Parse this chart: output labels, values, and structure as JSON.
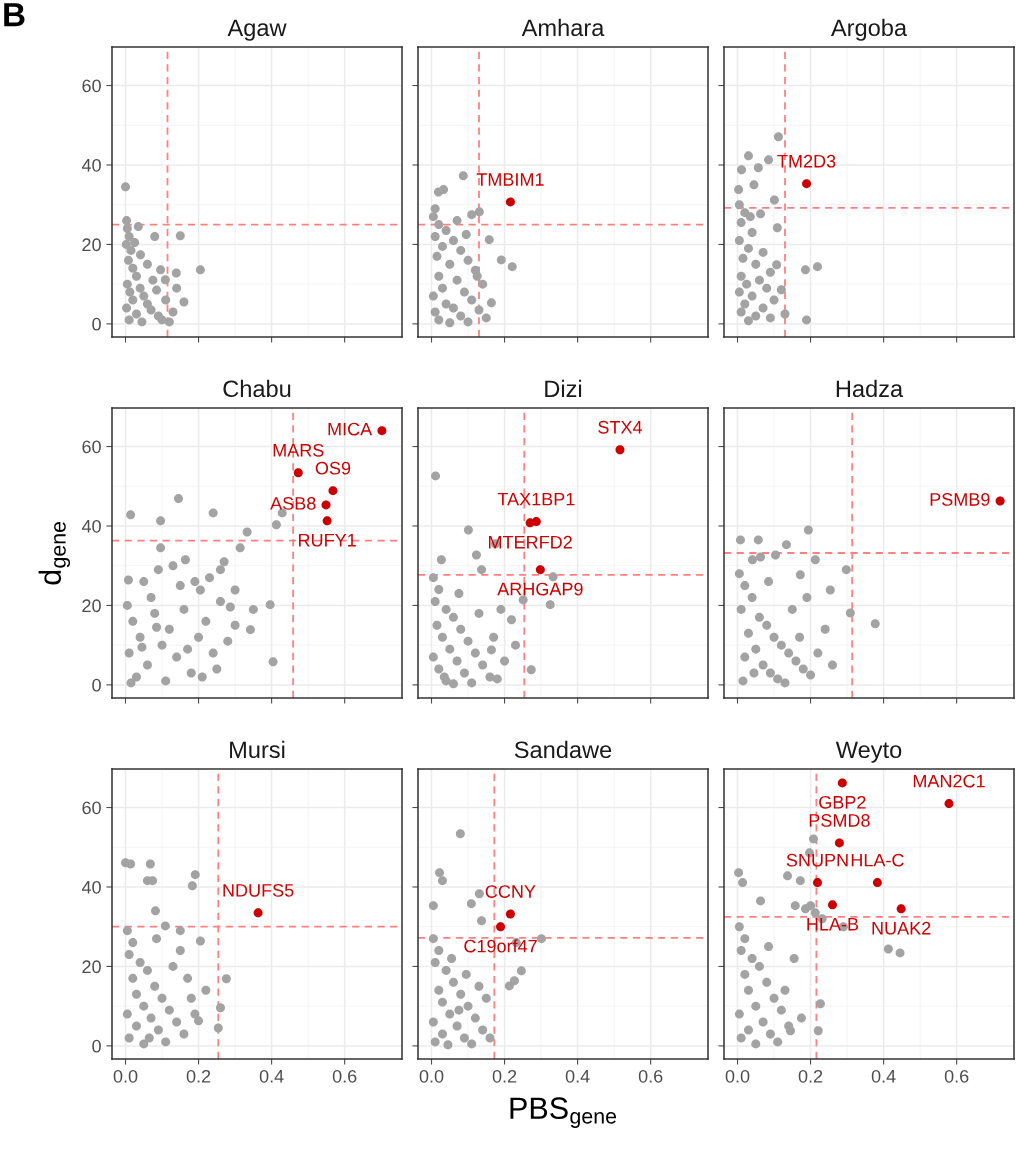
{
  "chart_data": [
    {
      "type": "scatter",
      "title": "Agaw",
      "annotations": [
        "B"
      ],
      "xlim": [
        -0.037,
        0.757
      ],
      "ylim": [
        -3.3,
        69.7
      ],
      "xticks": [
        {
          "value": 0,
          "label": null
        },
        {
          "value": 0.2,
          "label": null
        },
        {
          "value": 0.4,
          "label": null
        },
        {
          "value": 0.6,
          "label": null
        }
      ],
      "yticks": [
        0,
        20,
        40,
        60
      ],
      "grid": true,
      "tick_labels": "y",
      "marker": "circle",
      "ref_lines": [
        {
          "axis": "x",
          "value": 0.115,
          "color": "#ff8080",
          "line_style": "dashed"
        },
        {
          "axis": "y",
          "value": 25,
          "color": "#ff8080",
          "line_style": "dashed"
        }
      ],
      "series": [
        {
          "color": "#a3a3a3",
          "x": [
            0.0,
            0.003,
            0.005,
            0.01,
            0.002,
            0.015,
            0.008,
            0.02,
            0.03,
            0.005,
            0.04,
            0.012,
            0.05,
            0.02,
            0.06,
            0.003,
            0.07,
            0.03,
            0.09,
            0.01,
            0.045,
            0.1,
            0.12,
            0.08,
            0.15,
            0.205,
            0.139,
            0.096,
            0.109,
            0.041,
            0.06,
            0.075,
            0.11,
            0.13,
            0.085,
            0.025,
            0.14,
            0.16,
            0.035
          ],
          "values": [
            34.5,
            26.0,
            24.0,
            22.0,
            20.0,
            18.5,
            16.0,
            14.0,
            12.0,
            10.0,
            9.0,
            8.0,
            7.0,
            6.0,
            5.0,
            4.0,
            3.5,
            2.5,
            2.0,
            1.0,
            0.5,
            1.0,
            0.5,
            22.0,
            22.2,
            13.6,
            12.8,
            13.6,
            11.1,
            17.4,
            15.0,
            11.0,
            6.0,
            3.0,
            8.5,
            20.5,
            9.0,
            5.5,
            24.5
          ]
        }
      ]
    },
    {
      "type": "scatter",
      "title": "Amhara",
      "xlim": [
        -0.037,
        0.757
      ],
      "ylim": [
        -3.3,
        69.7
      ],
      "xticks": [
        {
          "value": 0,
          "label": null
        },
        {
          "value": 0.2,
          "label": null
        },
        {
          "value": 0.4,
          "label": null
        },
        {
          "value": 0.6,
          "label": null
        }
      ],
      "yticks": [
        0,
        20,
        40,
        60
      ],
      "grid": true,
      "tick_labels": false,
      "marker": "circle",
      "ref_lines": [
        {
          "axis": "x",
          "value": 0.13,
          "color": "#ff8080",
          "line_style": "dashed"
        },
        {
          "axis": "y",
          "value": 25,
          "color": "#ff8080",
          "line_style": "dashed"
        }
      ],
      "annotations": [
        {
          "text": "TMBIM1",
          "x": 0.216,
          "y": 30.7
        }
      ],
      "series": [
        {
          "color": "#a3a3a3",
          "x": [
            0.019,
            0.033,
            0.087,
            0.131,
            0.11,
            0.01,
            0.005,
            0.02,
            0.04,
            0.01,
            0.06,
            0.158,
            0.03,
            0.08,
            0.015,
            0.1,
            0.191,
            0.221,
            0.05,
            0.12,
            0.02,
            0.07,
            0.14,
            0.03,
            0.09,
            0.005,
            0.11,
            0.164,
            0.04,
            0.06,
            0.13,
            0.01,
            0.08,
            0.15,
            0.02,
            0.1,
            0.05,
            0.125,
            0.095,
            0.07
          ],
          "values": [
            33.2,
            33.8,
            37.3,
            28.2,
            27.5,
            29.0,
            27.0,
            25.0,
            23.5,
            22.0,
            21.0,
            21.2,
            19.5,
            18.5,
            17.0,
            16.0,
            16.1,
            14.4,
            15.0,
            13.5,
            12.0,
            11.0,
            10.0,
            9.0,
            8.0,
            7.0,
            6.0,
            5.3,
            5.0,
            4.0,
            3.5,
            3.0,
            2.0,
            1.5,
            1.0,
            0.5,
            0.3,
            12.0,
            22.5,
            26.0
          ]
        },
        {
          "color": "#cc0000",
          "x": [
            0.216
          ],
          "values": [
            30.7
          ]
        }
      ]
    },
    {
      "type": "scatter",
      "title": "Argoba",
      "xlim": [
        -0.037,
        0.757
      ],
      "ylim": [
        -3.3,
        69.7
      ],
      "xticks": [
        {
          "value": 0,
          "label": null
        },
        {
          "value": 0.2,
          "label": null
        },
        {
          "value": 0.4,
          "label": null
        },
        {
          "value": 0.6,
          "label": null
        }
      ],
      "yticks": [
        0,
        20,
        40,
        60
      ],
      "grid": true,
      "tick_labels": false,
      "marker": "circle",
      "ref_lines": [
        {
          "axis": "x",
          "value": 0.13,
          "color": "#ff8080",
          "line_style": "dashed"
        },
        {
          "axis": "y",
          "value": 29.2,
          "color": "#ff8080",
          "line_style": "dashed"
        }
      ],
      "annotations": [
        {
          "text": "TM2D3",
          "x": 0.189,
          "y": 35.3
        }
      ],
      "series": [
        {
          "color": "#a3a3a3",
          "x": [
            0.112,
            0.03,
            0.085,
            0.011,
            0.057,
            0.003,
            0.101,
            0.063,
            0.109,
            0.186,
            0.219,
            0.107,
            0.12,
            0.189,
            0.005,
            0.02,
            0.01,
            0.04,
            0.005,
            0.03,
            0.07,
            0.015,
            0.05,
            0.09,
            0.01,
            0.06,
            0.025,
            0.08,
            0.005,
            0.04,
            0.1,
            0.02,
            0.07,
            0.01,
            0.05,
            0.09,
            0.03,
            0.13,
            0.045,
            0.035
          ],
          "values": [
            47.1,
            42.3,
            41.3,
            38.8,
            39.3,
            33.8,
            31.2,
            27.7,
            24.2,
            13.6,
            14.4,
            14.9,
            8.6,
            1.0,
            30.0,
            28.0,
            25.5,
            23.0,
            21.0,
            19.0,
            18.0,
            16.5,
            15.0,
            13.0,
            12.0,
            11.0,
            10.0,
            9.0,
            8.0,
            7.0,
            6.0,
            5.0,
            4.0,
            3.0,
            2.0,
            1.5,
            0.8,
            2.5,
            35.0,
            27.0
          ]
        },
        {
          "color": "#cc0000",
          "x": [
            0.189
          ],
          "values": [
            35.3
          ]
        }
      ]
    },
    {
      "type": "scatter",
      "title": "Chabu",
      "ylabel": "d$_{gene}$",
      "xlim": [
        -0.037,
        0.757
      ],
      "ylim": [
        -3.3,
        69.7
      ],
      "xticks": [
        {
          "value": 0,
          "label": null
        },
        {
          "value": 0.2,
          "label": null
        },
        {
          "value": 0.4,
          "label": null
        },
        {
          "value": 0.6,
          "label": null
        }
      ],
      "yticks": [
        0,
        20,
        40,
        60
      ],
      "grid": true,
      "tick_labels": "y",
      "marker": "circle",
      "ref_lines": [
        {
          "axis": "x",
          "value": 0.459,
          "color": "#ff8080",
          "line_style": "dashed"
        },
        {
          "axis": "y",
          "value": 36.3,
          "color": "#ff8080",
          "line_style": "dashed"
        }
      ],
      "annotations": [
        {
          "text": "MICA",
          "x": 0.702,
          "y": 64.0
        },
        {
          "text": "MARS",
          "x": 0.473,
          "y": 53.4
        },
        {
          "text": "OS9",
          "x": 0.568,
          "y": 48.9
        },
        {
          "text": "ASB8",
          "x": 0.549,
          "y": 45.3
        },
        {
          "text": "RUFY1",
          "x": 0.552,
          "y": 41.3
        }
      ],
      "series": [
        {
          "color": "#a3a3a3",
          "x": [
            0.145,
            0.014,
            0.096,
            0.24,
            0.333,
            0.429,
            0.413,
            0.396,
            0.404,
            0.287,
            0.342,
            0.3,
            0.205,
            0.26,
            0.164,
            0.314,
            0.096,
            0.008,
            0.005,
            0.02,
            0.04,
            0.01,
            0.06,
            0.03,
            0.08,
            0.1,
            0.12,
            0.07,
            0.14,
            0.16,
            0.18,
            0.2,
            0.22,
            0.24,
            0.26,
            0.28,
            0.15,
            0.11,
            0.05,
            0.09,
            0.13,
            0.19,
            0.25,
            0.3,
            0.17,
            0.21,
            0.35,
            0.015,
            0.045,
            0.085,
            0.23,
            0.27
          ],
          "values": [
            46.9,
            42.8,
            41.3,
            43.3,
            38.5,
            43.3,
            40.3,
            20.2,
            5.8,
            19.6,
            13.9,
            23.9,
            23.9,
            29.0,
            31.5,
            34.5,
            34.5,
            26.4,
            20,
            16,
            12,
            8,
            5,
            2,
            18,
            10,
            14,
            22,
            7,
            19,
            3,
            12,
            16,
            8,
            21,
            11,
            25,
            1,
            26,
            29,
            30,
            26,
            4,
            15,
            9,
            2,
            19,
            0.5,
            9.5,
            14.5,
            27,
            31
          ]
        },
        {
          "color": "#cc0000",
          "x": [
            0.702,
            0.473,
            0.568,
            0.549,
            0.552
          ],
          "values": [
            64.0,
            53.4,
            48.9,
            45.3,
            41.3
          ]
        }
      ]
    },
    {
      "type": "scatter",
      "title": "Dizi",
      "xlim": [
        -0.037,
        0.757
      ],
      "ylim": [
        -3.3,
        69.7
      ],
      "xticks": [
        {
          "value": 0,
          "label": null
        },
        {
          "value": 0.2,
          "label": null
        },
        {
          "value": 0.4,
          "label": null
        },
        {
          "value": 0.6,
          "label": null
        }
      ],
      "yticks": [
        0,
        20,
        40,
        60
      ],
      "grid": true,
      "tick_labels": false,
      "marker": "circle",
      "ref_lines": [
        {
          "axis": "x",
          "value": 0.254,
          "color": "#ff8080",
          "line_style": "dashed"
        },
        {
          "axis": "y",
          "value": 27.7,
          "color": "#ff8080",
          "line_style": "dashed"
        }
      ],
      "annotations": [
        {
          "text": "STX4",
          "x": 0.516,
          "y": 59.2
        },
        {
          "text": "TAX1BP1",
          "x": 0.287,
          "y": 41.1
        },
        {
          "text": "MTERFD2",
          "x": 0.27,
          "y": 40.8
        },
        {
          "text": "ARHGAP9",
          "x": 0.298,
          "y": 29.0
        }
      ],
      "series": [
        {
          "color": "#a3a3a3",
          "x": [
            0.011,
            0.101,
            0.175,
            0.027,
            0.123,
            0.137,
            0.251,
            0.325,
            0.333,
            0.219,
            0.164,
            0.273,
            0.005,
            0.02,
            0.01,
            0.04,
            0.06,
            0.015,
            0.08,
            0.03,
            0.1,
            0.05,
            0.12,
            0.005,
            0.07,
            0.14,
            0.02,
            0.09,
            0.16,
            0.04,
            0.11,
            0.18,
            0.2,
            0.13,
            0.17,
            0.075,
            0.035,
            0.06,
            0.19,
            0.23
          ],
          "values": [
            52.6,
            39.0,
            35.5,
            31.5,
            32.7,
            29.0,
            21.4,
            20.2,
            27.2,
            16.4,
            8.8,
            3.8,
            27,
            24,
            21,
            19,
            17,
            15,
            14,
            12,
            11,
            9,
            8,
            7,
            6,
            5,
            4,
            3,
            2,
            1,
            0.5,
            1.5,
            6,
            18,
            12,
            23,
            2,
            0.3,
            19,
            10
          ]
        },
        {
          "color": "#cc0000",
          "x": [
            0.516,
            0.287,
            0.27,
            0.298
          ],
          "values": [
            59.2,
            41.1,
            40.8,
            29.0
          ]
        }
      ]
    },
    {
      "type": "scatter",
      "title": "Hadza",
      "xlim": [
        -0.037,
        0.757
      ],
      "ylim": [
        -3.3,
        69.7
      ],
      "xticks": [
        {
          "value": 0,
          "label": null
        },
        {
          "value": 0.2,
          "label": null
        },
        {
          "value": 0.4,
          "label": null
        },
        {
          "value": 0.6,
          "label": null
        }
      ],
      "yticks": [
        0,
        20,
        40,
        60
      ],
      "grid": true,
      "tick_labels": false,
      "marker": "circle",
      "ref_lines": [
        {
          "axis": "x",
          "value": 0.314,
          "color": "#ff8080",
          "line_style": "dashed"
        },
        {
          "axis": "y",
          "value": 33.2,
          "color": "#ff8080",
          "line_style": "dashed"
        }
      ],
      "annotations": [
        {
          "text": "PSMB9",
          "x": 0.719,
          "y": 46.3
        }
      ],
      "series": [
        {
          "color": "#a3a3a3",
          "x": [
            0.041,
            0.194,
            0.063,
            0.104,
            0.213,
            0.298,
            0.309,
            0.377,
            0.254,
            0.172,
            0.008,
            0.057,
            0.134,
            0.005,
            0.02,
            0.04,
            0.01,
            0.06,
            0.08,
            0.03,
            0.1,
            0.12,
            0.05,
            0.14,
            0.02,
            0.16,
            0.07,
            0.18,
            0.09,
            0.2,
            0.11,
            0.015,
            0.13,
            0.22,
            0.24,
            0.15,
            0.19,
            0.26,
            0.045,
            0.085,
            0.17
          ],
          "values": [
            31.5,
            39.0,
            32.2,
            32.7,
            31.5,
            29.0,
            18.1,
            15.4,
            23.9,
            27.7,
            36.5,
            36.5,
            35.3,
            28,
            25,
            22,
            19,
            17,
            15,
            13,
            12,
            10,
            9,
            8,
            7,
            6,
            5,
            4,
            3,
            2.5,
            1.5,
            1,
            0.5,
            8,
            14,
            19,
            22,
            5,
            3,
            26,
            12
          ]
        },
        {
          "color": "#cc0000",
          "x": [
            0.719
          ],
          "values": [
            46.3
          ]
        }
      ]
    },
    {
      "type": "scatter",
      "title": "Mursi",
      "xlim": [
        -0.037,
        0.757
      ],
      "ylim": [
        -3.3,
        69.7
      ],
      "xticks": [
        {
          "value": 0,
          "label": "0.0"
        },
        {
          "value": 0.2,
          "label": "0.2"
        },
        {
          "value": 0.4,
          "label": "0.4"
        },
        {
          "value": 0.6,
          "label": "0.6"
        }
      ],
      "yticks": [
        0,
        20,
        40,
        60
      ],
      "grid": true,
      "marker": "circle",
      "ref_lines": [
        {
          "axis": "x",
          "value": 0.254,
          "color": "#ff8080",
          "line_style": "dashed"
        },
        {
          "axis": "y",
          "value": 30.0,
          "color": "#ff8080",
          "line_style": "dashed"
        }
      ],
      "annotations": [
        {
          "text": "NDUFS5",
          "x": 0.363,
          "y": 33.5
        }
      ],
      "series": [
        {
          "color": "#a3a3a3",
          "x": [
            0.0,
            0.014,
            0.068,
            0.06,
            0.074,
            0.082,
            0.191,
            0.183,
            0.109,
            0.15,
            0.205,
            0.276,
            0.26,
            0.254,
            0.2,
            0.005,
            0.02,
            0.01,
            0.04,
            0.06,
            0.02,
            0.08,
            0.03,
            0.1,
            0.05,
            0.12,
            0.005,
            0.07,
            0.14,
            0.03,
            0.09,
            0.16,
            0.01,
            0.11,
            0.05,
            0.18,
            0.13,
            0.15,
            0.17,
            0.085,
            0.19,
            0.065,
            0.22
          ],
          "values": [
            46.1,
            45.8,
            45.8,
            41.6,
            41.6,
            34.0,
            43.1,
            40.3,
            30.2,
            29.0,
            26.4,
            16.9,
            9.6,
            4.5,
            6.3,
            29,
            26,
            23,
            21,
            19,
            17,
            15,
            13,
            12,
            10,
            9,
            8,
            7,
            6,
            5,
            4,
            3,
            2,
            1,
            0.5,
            12,
            20,
            24,
            17,
            27,
            8,
            2,
            14
          ]
        },
        {
          "color": "#cc0000",
          "x": [
            0.363
          ],
          "values": [
            33.5
          ]
        }
      ]
    },
    {
      "type": "scatter",
      "title": "Sandawe",
      "xlabel": "PBS$_{gene}$",
      "xlim": [
        -0.037,
        0.757
      ],
      "ylim": [
        -3.3,
        69.7
      ],
      "xticks": [
        {
          "value": 0,
          "label": "0.0"
        },
        {
          "value": 0.2,
          "label": "0.2"
        },
        {
          "value": 0.4,
          "label": "0.4"
        },
        {
          "value": 0.6,
          "label": "0.6"
        }
      ],
      "yticks": [
        0,
        20,
        40,
        60
      ],
      "grid": true,
      "tick_labels": "x",
      "marker": "circle",
      "ref_lines": [
        {
          "axis": "x",
          "value": 0.172,
          "color": "#ff8080",
          "line_style": "dashed"
        },
        {
          "axis": "y",
          "value": 27.2,
          "color": "#ff8080",
          "line_style": "dashed"
        }
      ],
      "annotations": [
        {
          "text": "CCNY",
          "x": 0.216,
          "y": 33.2
        },
        {
          "text": "C19orf47",
          "x": 0.189,
          "y": 30.0
        }
      ],
      "series": [
        {
          "color": "#a3a3a3",
          "x": [
            0.079,
            0.022,
            0.03,
            0.005,
            0.131,
            0.137,
            0.109,
            0.301,
            0.232,
            0.246,
            0.213,
            0.227,
            0.005,
            0.02,
            0.01,
            0.04,
            0.06,
            0.02,
            0.08,
            0.03,
            0.1,
            0.05,
            0.12,
            0.005,
            0.07,
            0.14,
            0.03,
            0.09,
            0.01,
            0.11,
            0.15,
            0.055,
            0.095,
            0.16,
            0.045,
            0.13,
            0.075
          ],
          "values": [
            53.4,
            43.6,
            41.6,
            35.3,
            38.3,
            31.5,
            35.8,
            27.0,
            26.0,
            18.9,
            15.1,
            16.4,
            27,
            24,
            21,
            19,
            16,
            14,
            13,
            11,
            10,
            8,
            7,
            6,
            5,
            4,
            3,
            2,
            1,
            0.5,
            12,
            22,
            18,
            2,
            0.3,
            15,
            9
          ]
        },
        {
          "color": "#cc0000",
          "x": [
            0.216,
            0.189
          ],
          "values": [
            33.2,
            30.0
          ]
        }
      ]
    },
    {
      "type": "scatter",
      "title": "Weyto",
      "xlim": [
        -0.037,
        0.757
      ],
      "ylim": [
        -3.3,
        69.7
      ],
      "xticks": [
        {
          "value": 0,
          "label": "0.0"
        },
        {
          "value": 0.2,
          "label": "0.2"
        },
        {
          "value": 0.4,
          "label": "0.4"
        },
        {
          "value": 0.6,
          "label": "0.6"
        }
      ],
      "yticks": [
        0,
        20,
        40,
        60
      ],
      "grid": true,
      "tick_labels": "x",
      "marker": "circle",
      "ref_lines": [
        {
          "axis": "x",
          "value": 0.216,
          "color": "#ff8080",
          "line_style": "dashed"
        },
        {
          "axis": "y",
          "value": 32.5,
          "color": "#ff8080",
          "line_style": "dashed"
        }
      ],
      "annotations": [
        {
          "text": "GBP2",
          "x": 0.287,
          "y": 66.2
        },
        {
          "text": "MAN2C1",
          "x": 0.579,
          "y": 61.0
        },
        {
          "text": "PSMD8",
          "x": 0.279,
          "y": 51.1
        },
        {
          "text": "SNUPN",
          "x": 0.219,
          "y": 41.1
        },
        {
          "text": "HLA-C",
          "x": 0.383,
          "y": 41.1
        },
        {
          "text": "HLA-B",
          "x": 0.26,
          "y": 35.5
        },
        {
          "text": "NUAK2",
          "x": 0.448,
          "y": 34.5
        }
      ],
      "series": [
        {
          "color": "#a3a3a3",
          "x": [
            0.208,
            0.197,
            0.003,
            0.014,
            0.172,
            0.2,
            0.186,
            0.137,
            0.213,
            0.232,
            0.29,
            0.413,
            0.445,
            0.158,
            0.063,
            0.227,
            0.221,
            0.145,
            0.005,
            0.02,
            0.01,
            0.04,
            0.06,
            0.02,
            0.08,
            0.03,
            0.1,
            0.05,
            0.12,
            0.005,
            0.07,
            0.14,
            0.03,
            0.09,
            0.01,
            0.11,
            0.05,
            0.13,
            0.155,
            0.085,
            0.175
          ],
          "values": [
            52.1,
            48.6,
            43.6,
            41.1,
            41.6,
            35.3,
            34.5,
            42.8,
            33.5,
            32.0,
            30.0,
            24.4,
            23.4,
            35.3,
            36.5,
            10.6,
            3.8,
            3.8,
            30,
            27,
            24,
            22,
            20,
            18,
            16,
            14,
            12,
            10,
            9,
            8,
            6,
            5,
            4,
            3,
            2,
            1,
            0.5,
            14,
            22,
            25,
            7
          ]
        },
        {
          "color": "#cc0000",
          "x": [
            0.287,
            0.579,
            0.279,
            0.219,
            0.383,
            0.26,
            0.448
          ],
          "values": [
            66.2,
            61.0,
            51.1,
            41.1,
            41.1,
            35.5,
            34.5
          ]
        }
      ]
    }
  ]
}
